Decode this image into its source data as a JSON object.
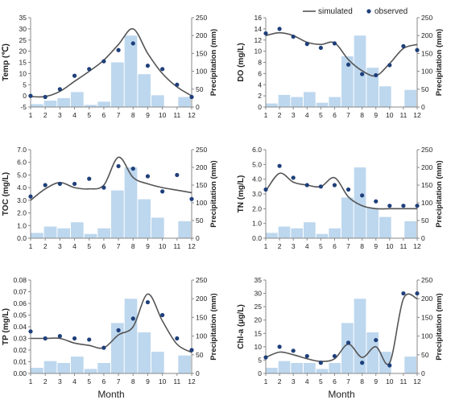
{
  "shared": {
    "month_axis_label": "Month",
    "precip_axis_label": "Precipitation (mm)",
    "bar_color": "#bdd7ee",
    "line_color": "#555555",
    "point_color": "#1f3f7a",
    "months": [
      1,
      2,
      3,
      4,
      5,
      6,
      7,
      8,
      9,
      10,
      11,
      12
    ]
  },
  "legend": {
    "simulated": "simulated",
    "observed": "observed"
  },
  "chart_data": [
    {
      "type": "line+bar",
      "ylabel": "Temp (℃)",
      "y2label": "Precipitation (mm)",
      "xlabel": "",
      "ylim": [
        -5,
        35
      ],
      "yticks": [
        -5,
        0,
        5,
        10,
        15,
        20,
        25,
        30,
        35
      ],
      "y2lim": [
        0,
        250
      ],
      "y2ticks": [
        0,
        50,
        100,
        150,
        200,
        250
      ],
      "precipitation": [
        8,
        18,
        25,
        42,
        6,
        15,
        125,
        200,
        92,
        33,
        0,
        28
      ],
      "observed": [
        0,
        -0.5,
        3,
        9,
        12,
        15.5,
        20.5,
        23.5,
        13.5,
        12,
        5,
        -0.5
      ],
      "simulated": [
        -0.3,
        -0.3,
        2,
        6.5,
        11,
        16,
        23,
        30,
        19,
        10,
        4,
        0
      ]
    },
    {
      "type": "line+bar",
      "ylabel": "DO (mg/L)",
      "y2label": "Precipitation (mm)",
      "xlabel": "",
      "ylim": [
        0,
        16
      ],
      "yticks": [
        0,
        2,
        4,
        6,
        8,
        10,
        12,
        14,
        16
      ],
      "y2lim": [
        0,
        250
      ],
      "y2ticks": [
        0,
        50,
        100,
        150,
        200,
        250
      ],
      "precipitation": [
        10,
        34,
        28,
        42,
        12,
        28,
        142,
        200,
        110,
        58,
        0,
        48
      ],
      "observed": [
        13.2,
        14,
        12.6,
        11.3,
        10.6,
        11.4,
        7.6,
        5.9,
        5.7,
        7.5,
        10.9,
        10.2
      ],
      "simulated": [
        12.8,
        13.3,
        12.8,
        11.6,
        11.2,
        11.5,
        8.5,
        6.5,
        5.6,
        7.8,
        10.5,
        11.2
      ]
    },
    {
      "type": "line+bar",
      "ylabel": "TOC (mg/L)",
      "y2label": "Precipitation (mm)",
      "xlabel": "",
      "ylim": [
        0,
        7
      ],
      "yticks": [
        0.0,
        1.0,
        2.0,
        3.0,
        4.0,
        5.0,
        6.0,
        7.0
      ],
      "y2lim": [
        0,
        250
      ],
      "y2ticks": [
        0,
        50,
        100,
        150,
        200,
        250
      ],
      "precipitation": [
        15,
        33,
        28,
        45,
        12,
        28,
        135,
        200,
        110,
        58,
        0,
        48
      ],
      "observed": [
        3.3,
        4.2,
        4.3,
        4.3,
        4.7,
        4.0,
        5.7,
        5.5,
        4.9,
        3.7,
        5.0,
        3.1
      ],
      "simulated": [
        3.0,
        3.9,
        4.4,
        4.0,
        3.9,
        4.2,
        6.4,
        4.8,
        4.3,
        4.0,
        3.8,
        3.6
      ]
    },
    {
      "type": "line+bar",
      "ylabel": "TN (mg/L)",
      "y2label": "Precipitation (mm)",
      "xlabel": "",
      "ylim": [
        0,
        6
      ],
      "yticks": [
        0.0,
        1.0,
        2.0,
        3.0,
        4.0,
        5.0,
        6.0
      ],
      "y2lim": [
        0,
        250
      ],
      "y2ticks": [
        0,
        50,
        100,
        150,
        200,
        250
      ],
      "precipitation": [
        15,
        33,
        28,
        45,
        12,
        28,
        115,
        200,
        85,
        60,
        0,
        48
      ],
      "observed": [
        3.3,
        4.9,
        4.1,
        3.6,
        3.5,
        3.6,
        3.3,
        2.9,
        2.5,
        2.2,
        2.2,
        2.2
      ],
      "simulated": [
        3.2,
        4.4,
        3.8,
        3.6,
        3.5,
        4.1,
        2.8,
        2.2,
        2.0,
        2.0,
        2.0,
        2.0
      ]
    },
    {
      "type": "line+bar",
      "ylabel": "TP (mg/L)",
      "y2label": "Precipitation (mm)",
      "xlabel": "Month",
      "ylim": [
        0,
        0.08
      ],
      "yticks": [
        0,
        0.01,
        0.02,
        0.03,
        0.04,
        0.05,
        0.06,
        0.07,
        0.08
      ],
      "y2lim": [
        0,
        250
      ],
      "y2ticks": [
        0,
        50,
        100,
        150,
        200,
        250
      ],
      "precipitation": [
        15,
        33,
        28,
        45,
        12,
        28,
        135,
        200,
        110,
        58,
        0,
        48
      ],
      "observed": [
        0.036,
        0.03,
        0.032,
        0.03,
        0.029,
        0.022,
        0.037,
        0.047,
        0.061,
        0.05,
        0.03,
        0.02
      ],
      "simulated": [
        0.03,
        0.03,
        0.03,
        0.026,
        0.024,
        0.022,
        0.033,
        0.04,
        0.068,
        0.045,
        0.025,
        0.018
      ]
    },
    {
      "type": "line+bar",
      "ylabel": "Chl-a (μg/L)",
      "y2label": "Precipitation (mm)",
      "xlabel": "Month",
      "ylim": [
        0,
        35
      ],
      "yticks": [
        0,
        5,
        10,
        15,
        20,
        25,
        30,
        35
      ],
      "y2lim": [
        0,
        250
      ],
      "y2ticks": [
        0,
        50,
        100,
        150,
        200,
        250
      ],
      "precipitation": [
        15,
        33,
        28,
        28,
        12,
        28,
        135,
        200,
        110,
        58,
        0,
        45
      ],
      "observed": [
        6,
        10,
        8.5,
        6.5,
        4,
        6.5,
        11.5,
        4,
        12.5,
        3,
        30,
        30
      ],
      "simulated": [
        6,
        8,
        7,
        5.5,
        4.5,
        5.5,
        11,
        6,
        10,
        4,
        28,
        28
      ]
    }
  ]
}
